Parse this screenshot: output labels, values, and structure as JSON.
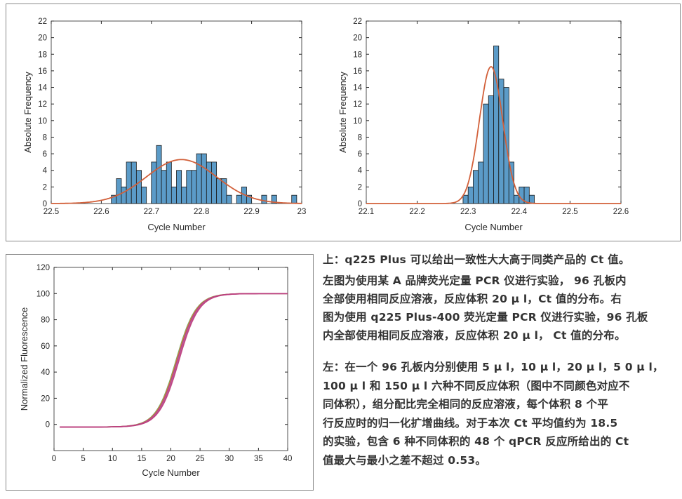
{
  "chart_data": [
    {
      "type": "bar",
      "id": "left",
      "ylabel": "Absolute Frequency",
      "xlabel": "Cycle Number",
      "xlim": [
        22.5,
        23
      ],
      "ylim": [
        0,
        22
      ],
      "xticks": [
        "22.5",
        "22.6",
        "22.7",
        "22.8",
        "22.9",
        "23"
      ],
      "yticks": [
        "0",
        "2",
        "4",
        "6",
        "8",
        "10",
        "12",
        "14",
        "16",
        "18",
        "20",
        "22"
      ],
      "bin_start": 22.62,
      "bin_width": 0.01,
      "values": [
        1,
        3,
        2,
        5,
        5,
        4,
        2,
        0,
        5,
        7,
        4,
        5,
        2,
        4,
        2,
        4,
        4,
        6,
        6,
        5,
        5,
        3,
        3,
        1,
        0,
        1,
        2,
        1,
        0,
        0,
        1,
        0,
        1,
        0,
        0,
        0,
        1
      ],
      "fit": {
        "mean": 22.76,
        "sigma": 0.07,
        "peak": 5.3
      }
    },
    {
      "type": "bar",
      "id": "right",
      "ylabel": "Absolute Frequency",
      "xlabel": "Cycle Number",
      "xlim": [
        22.1,
        22.6
      ],
      "ylim": [
        0,
        22
      ],
      "xticks": [
        "22.1",
        "22.2",
        "22.3",
        "22.4",
        "22.5",
        "22.6"
      ],
      "yticks": [
        "0",
        "2",
        "4",
        "6",
        "8",
        "10",
        "12",
        "14",
        "16",
        "18",
        "20",
        "22"
      ],
      "bin_start": 22.29,
      "bin_width": 0.01,
      "values": [
        1,
        2,
        4,
        5,
        12,
        13,
        19,
        15,
        14,
        5,
        1,
        2,
        2,
        1
      ],
      "fit": {
        "mean": 22.345,
        "sigma": 0.023,
        "peak": 16.5
      }
    },
    {
      "type": "line",
      "id": "bottom",
      "ylabel": "Normalized Fluorescence",
      "xlabel": "Cycle Number",
      "xlim": [
        0,
        40
      ],
      "ylim": [
        -20,
        120
      ],
      "xticks": [
        "0",
        "5",
        "10",
        "15",
        "20",
        "25",
        "30",
        "35",
        "40"
      ],
      "yticks": [
        "0",
        "20",
        "40",
        "60",
        "80",
        "100",
        "120"
      ],
      "x_start": 1,
      "x_end": 40,
      "series": [
        {
          "name": "5 µl",
          "color": "#5aa04a",
          "midpoint": 20.9
        },
        {
          "name": "10 µl",
          "color": "#e07a3a",
          "midpoint": 21.0
        },
        {
          "name": "20 µl",
          "color": "#c0395a",
          "midpoint": 21.1
        },
        {
          "name": "50 µl",
          "color": "#9a5ab0",
          "midpoint": 21.2
        },
        {
          "name": "100 µl",
          "color": "#d0508a",
          "midpoint": 21.3
        },
        {
          "name": "150 µl",
          "color": "#b83a7a",
          "midpoint": 21.4
        }
      ]
    }
  ],
  "colors": {
    "bar": "#5b9bc8",
    "bar_edge": "#1a1a1a",
    "fit": "#d2603a"
  },
  "text_top": [
    "上：q225 Plus 可以给出一致性大大高于同类产品的 Ct 值。",
    "左图为使用某 A 品牌荧光定量 PCR 仪进行实验， 96 孔板内",
    "全部使用相同反应溶液，反应体积 20 µ l，Ct 值的分布。右",
    "图为使用 q225 Plus-400 荧光定量 PCR 仪进行实验，96 孔板",
    "内全部使用相同反应溶液，反应体积 20 µ l， Ct 值的分布。"
  ],
  "text_bottom": [
    "左：在一个 96 孔板内分别使用 5 µ l，10 µ l，20 µ l，5 0 µ l，",
    "100 µ l 和 150 µ l 六种不同反应体积（图中不同颜色对应不",
    "同体积），组分配比完全相同的反应溶液，每个体积 8 个平",
    "行反应时的归一化扩增曲线。对于本次 Ct 平均值约为 18.5",
    "的实验，包含 6 种不同体积的 48 个 qPCR 反应所给出的 Ct",
    "值最大与最小之差不超过 0.53。"
  ]
}
